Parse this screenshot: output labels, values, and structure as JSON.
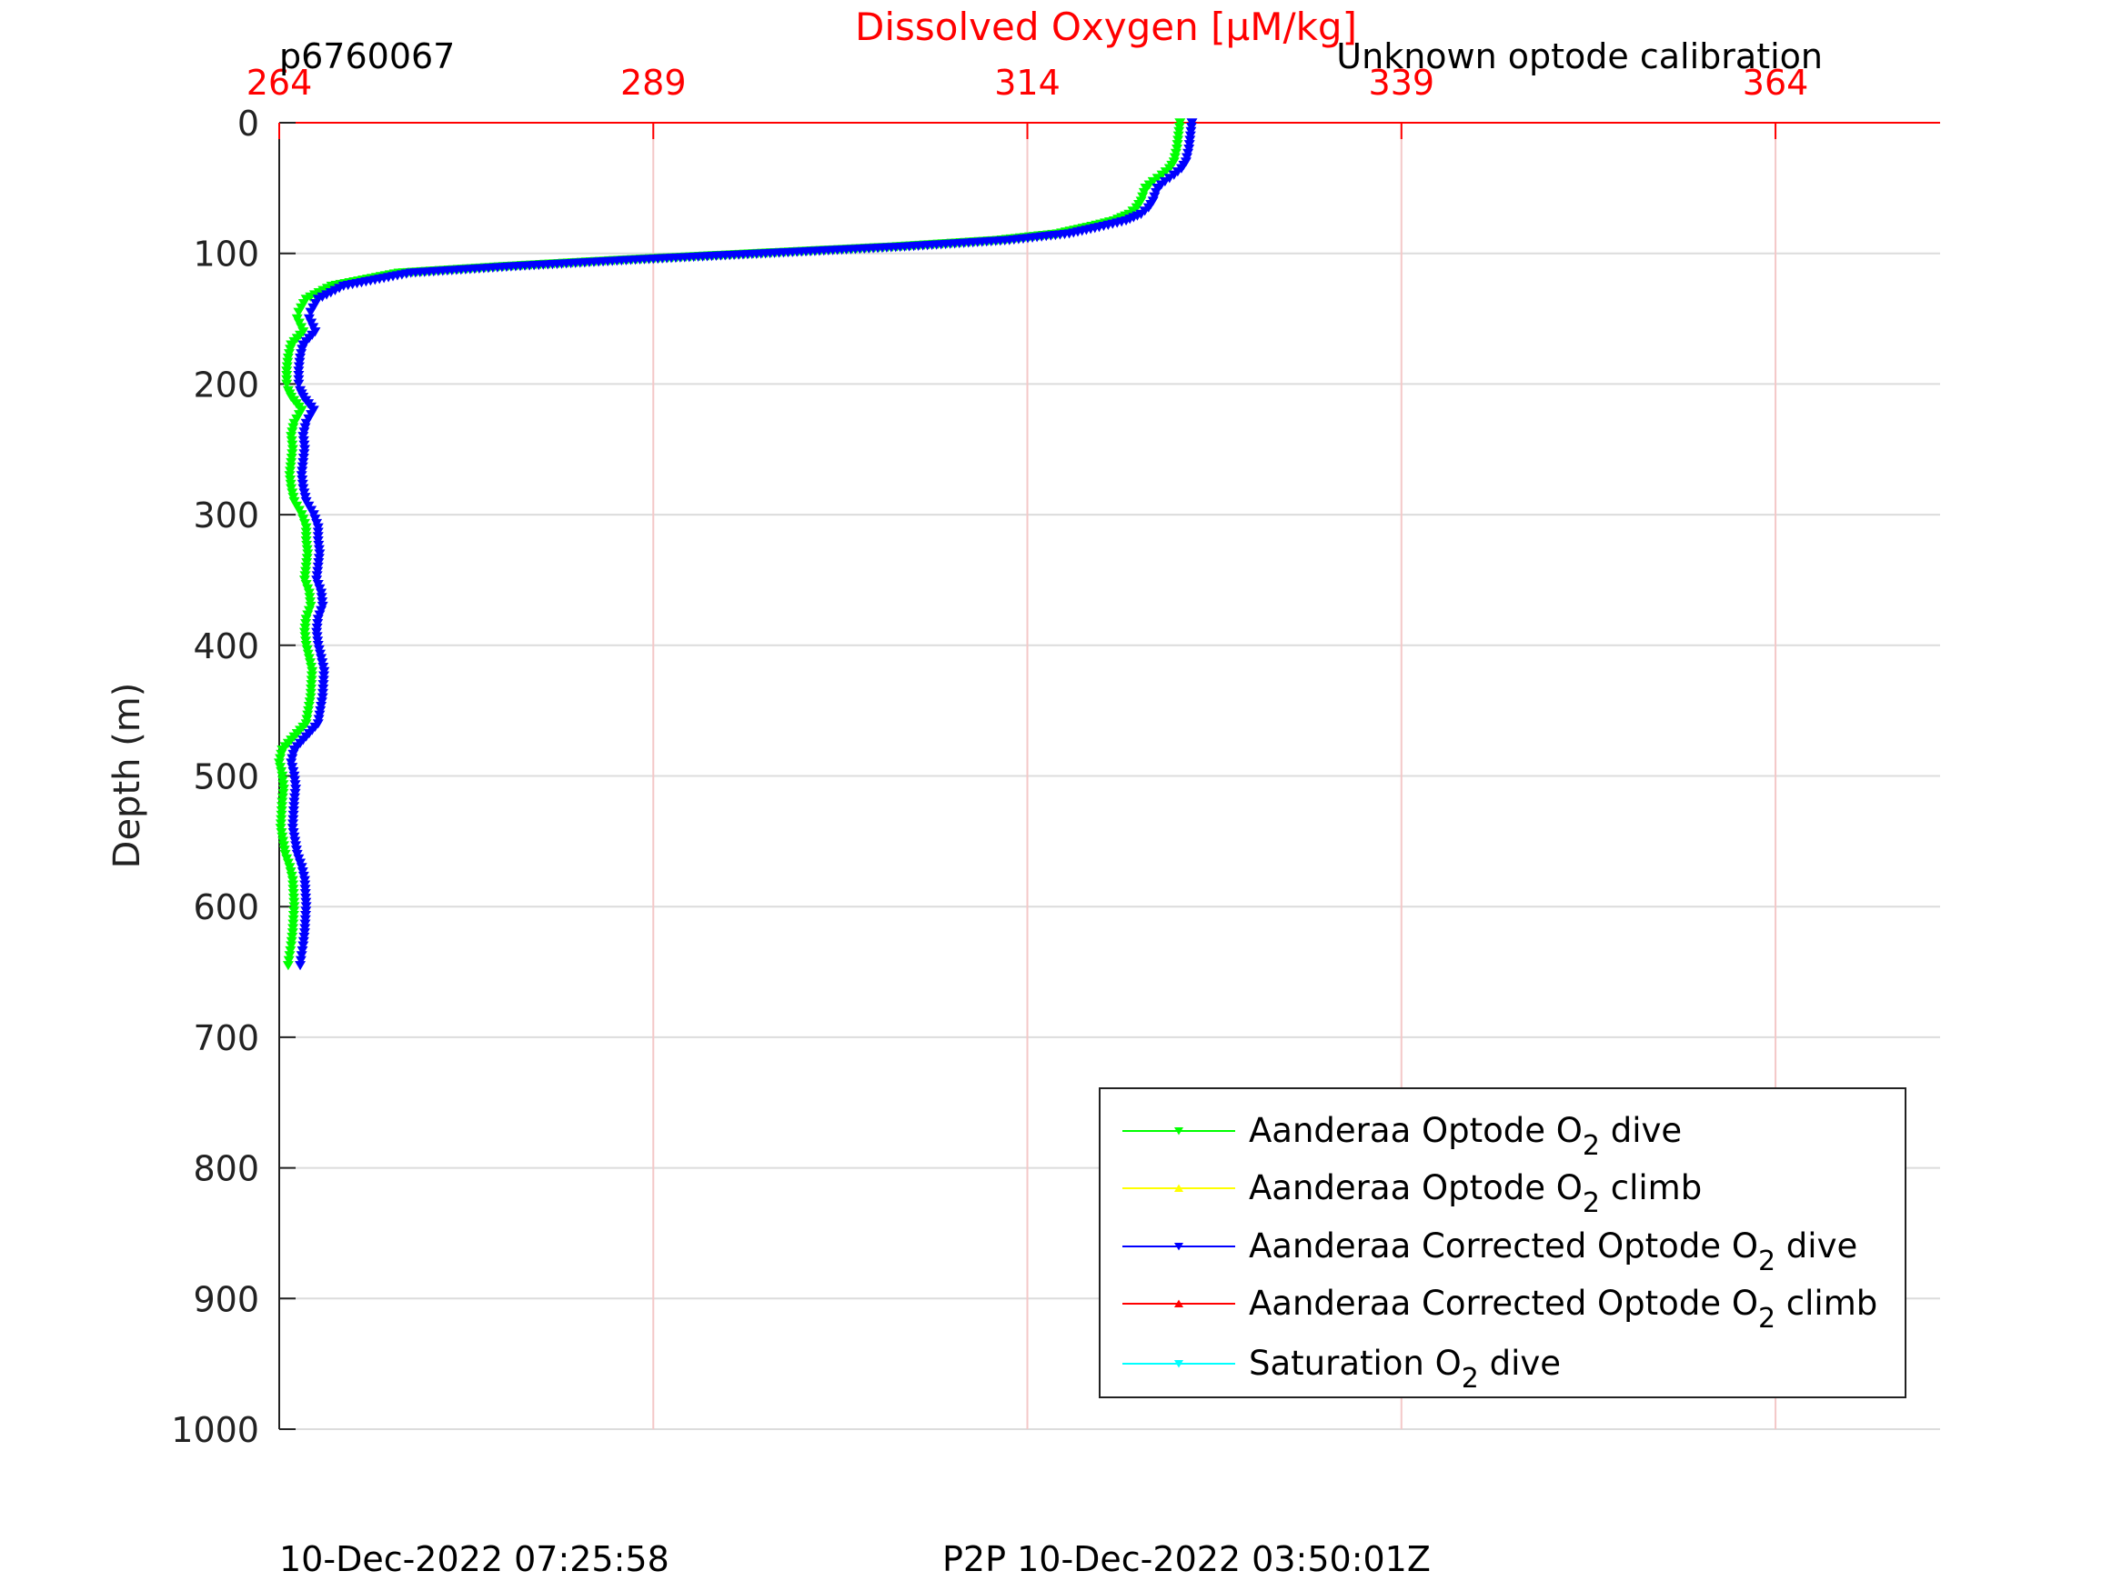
{
  "header": {
    "glider_id": "p6760067",
    "calibration_note": "Unknown optode calibration"
  },
  "footer": {
    "plot_time": "10-Dec-2022 07:25:58",
    "p2p_time": "P2P 10-Dec-2022 03:50:01Z"
  },
  "colors": {
    "axis_top": "#ff0000",
    "grid": "#dcdcdc",
    "grid_vertical": "#f4c8c8",
    "optode_dive": "#00ff00",
    "optode_climb": "#ffff00",
    "corrected_dive": "#0000ff",
    "corrected_climb": "#ff0000",
    "saturation_dive": "#00ffff"
  },
  "chart_data": {
    "type": "line",
    "title": "Dissolved Oxygen [μM/kg]",
    "xlabel": "Dissolved Oxygen [μM/kg]",
    "ylabel": "Depth (m)",
    "xlim": [
      264,
      375
    ],
    "ylim": [
      1000,
      0
    ],
    "x_ticks": [
      "264",
      "289",
      "314",
      "339",
      "364"
    ],
    "x_tick_values": [
      264,
      289,
      314,
      339,
      364
    ],
    "y_ticks": [
      "0",
      "100",
      "200",
      "300",
      "400",
      "500",
      "600",
      "700",
      "800",
      "900",
      "1000"
    ],
    "y_tick_values": [
      0,
      100,
      200,
      300,
      400,
      500,
      600,
      700,
      800,
      900,
      1000
    ],
    "grid": true,
    "legend_position": "bottom-right",
    "legend": [
      {
        "key": "optode_dive",
        "prefix": "Aanderaa Optode O",
        "sub": "2",
        "suffix": " dive",
        "marker": "down"
      },
      {
        "key": "optode_climb",
        "prefix": "Aanderaa Optode O",
        "sub": "2",
        "suffix": " climb",
        "marker": "up"
      },
      {
        "key": "corrected_dive",
        "prefix": "Aanderaa Corrected Optode O",
        "sub": "2",
        "suffix": " dive",
        "marker": "down"
      },
      {
        "key": "corrected_climb",
        "prefix": "Aanderaa Corrected Optode O",
        "sub": "2",
        "suffix": " climb",
        "marker": "up"
      },
      {
        "key": "saturation_dive",
        "prefix": "Saturation O",
        "sub": "2",
        "suffix": " dive",
        "marker": "down"
      }
    ],
    "series": [
      {
        "key": "optode_dive",
        "x": [
          324.2,
          324.1,
          324.0,
          323.8,
          323.5,
          323.0,
          322.4,
          321.9,
          321.6,
          321.3,
          320.8,
          319.8,
          318.0,
          316.0,
          312.0,
          305.0,
          296.0,
          287.0,
          279.0,
          272.0,
          267.5,
          265.8,
          265.3,
          265.2,
          265.6,
          264.8,
          264.6,
          264.5,
          264.5,
          264.6,
          264.8,
          265.5,
          265.0,
          264.8,
          264.9,
          264.8,
          264.7,
          264.8,
          265.0,
          265.5,
          265.8,
          265.8,
          265.9,
          265.8,
          265.7,
          266.0,
          266.1,
          265.8,
          265.7,
          265.8,
          266.0,
          266.2,
          266.1,
          265.8,
          265.0,
          264.2,
          264.0,
          264.2,
          264.3,
          264.2,
          264.1,
          264.4,
          264.7,
          264.9,
          265.0,
          264.9,
          264.8,
          264.6
        ],
        "y": [
          0,
          10,
          20,
          30,
          35,
          40,
          45,
          50,
          60,
          65,
          70,
          75,
          80,
          85,
          90,
          95,
          100,
          105,
          110,
          115,
          125,
          135,
          145,
          150,
          160,
          170,
          180,
          190,
          200,
          205,
          210,
          220,
          230,
          240,
          250,
          260,
          270,
          280,
          290,
          300,
          310,
          320,
          330,
          340,
          350,
          360,
          370,
          380,
          390,
          400,
          410,
          420,
          440,
          460,
          470,
          480,
          490,
          500,
          510,
          520,
          540,
          560,
          570,
          580,
          600,
          620,
          630,
          645
        ]
      },
      {
        "key": "corrected_dive",
        "x": [
          325.0,
          324.9,
          324.8,
          324.6,
          324.3,
          323.8,
          323.2,
          322.7,
          322.4,
          322.1,
          321.6,
          320.6,
          318.8,
          316.8,
          312.8,
          305.8,
          296.8,
          287.8,
          279.8,
          272.8,
          268.3,
          266.6,
          266.1,
          266.0,
          266.4,
          265.6,
          265.4,
          265.3,
          265.3,
          265.4,
          265.6,
          266.3,
          265.8,
          265.6,
          265.7,
          265.6,
          265.5,
          265.6,
          265.8,
          266.3,
          266.6,
          266.6,
          266.7,
          266.6,
          266.5,
          266.8,
          266.9,
          266.6,
          266.5,
          266.6,
          266.8,
          267.0,
          266.9,
          266.6,
          265.8,
          265.0,
          264.8,
          265.0,
          265.1,
          265.0,
          264.9,
          265.2,
          265.5,
          265.7,
          265.8,
          265.7,
          265.6,
          265.4
        ],
        "y": [
          0,
          10,
          20,
          30,
          35,
          40,
          45,
          50,
          60,
          65,
          70,
          75,
          80,
          85,
          90,
          95,
          100,
          105,
          110,
          115,
          125,
          135,
          145,
          150,
          160,
          170,
          180,
          190,
          200,
          205,
          210,
          220,
          230,
          240,
          250,
          260,
          270,
          280,
          290,
          300,
          310,
          320,
          330,
          340,
          350,
          360,
          370,
          380,
          390,
          400,
          410,
          420,
          440,
          460,
          470,
          480,
          490,
          500,
          510,
          520,
          540,
          560,
          570,
          580,
          600,
          620,
          630,
          645
        ]
      }
    ]
  }
}
